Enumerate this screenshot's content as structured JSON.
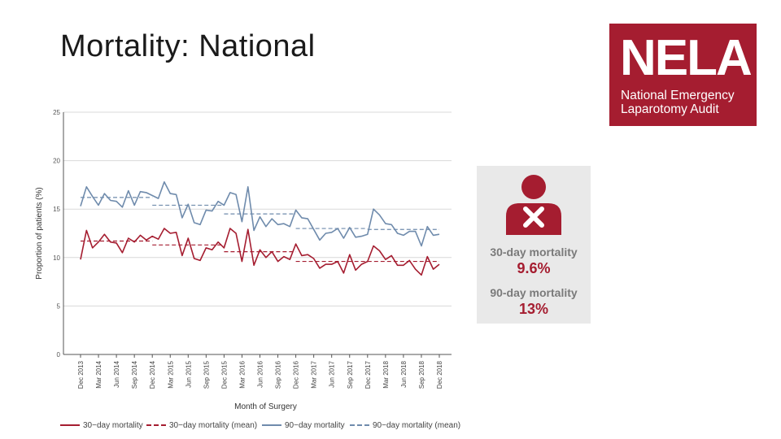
{
  "slide": {
    "title": "Mortality: National"
  },
  "logo": {
    "acronym": "NELA",
    "line1": "National Emergency",
    "line2": "Laparotomy Audit"
  },
  "info": {
    "label30": "30-day mortality",
    "value30": "9.6%",
    "label90": "90-day mortality",
    "value90": "13%",
    "icon": "person-cross-icon"
  },
  "colors": {
    "red": "#a51d30",
    "blue": "#6f8bac",
    "grid": "#d9d9d9",
    "axis": "#555555"
  },
  "chart_data": {
    "type": "line",
    "title": "",
    "xlabel": "Month of Surgery",
    "ylabel": "Proportion of patients (%)",
    "ylim": [
      0,
      25
    ],
    "yticks": [
      0,
      5,
      10,
      15,
      20,
      25
    ],
    "xtick_labels": [
      "Dec 2013",
      "Mar 2014",
      "Jun 2014",
      "Sep 2014",
      "Dec 2014",
      "Mar 2015",
      "Jun 2015",
      "Sep 2015",
      "Dec 2015",
      "Mar 2016",
      "Jun 2016",
      "Sep 2016",
      "Dec 2016",
      "Mar 2017",
      "Jun 2017",
      "Sep 2017",
      "Dec 2017",
      "Mar 2018",
      "Jun 2018",
      "Sep 2018",
      "Dec 2018"
    ],
    "months": 61,
    "series": [
      {
        "name": "30−day mortality",
        "style": "solid",
        "color": "#a51d30",
        "values": [
          9.8,
          12.8,
          11.0,
          11.6,
          12.4,
          11.6,
          11.5,
          10.5,
          12.0,
          11.6,
          12.3,
          11.8,
          12.2,
          11.9,
          13.0,
          12.5,
          12.6,
          10.2,
          12.0,
          9.9,
          9.7,
          11.0,
          10.8,
          11.6,
          11.0,
          13.0,
          12.5,
          9.6,
          12.9,
          9.2,
          10.8,
          10.0,
          10.6,
          9.6,
          10.1,
          9.8,
          11.4,
          10.2,
          10.3,
          9.9,
          8.9,
          9.3,
          9.3,
          9.6,
          8.4,
          10.3,
          8.7,
          9.3,
          9.6,
          11.2,
          10.7,
          9.8,
          10.2,
          9.2,
          9.2,
          9.7,
          8.8,
          8.2,
          10.1,
          8.8,
          9.3
        ]
      },
      {
        "name": "30−day mortality (mean)",
        "style": "dashed",
        "color": "#a51d30",
        "segments": [
          {
            "start": 0,
            "end": 12,
            "value": 11.7
          },
          {
            "start": 12,
            "end": 24,
            "value": 11.3
          },
          {
            "start": 24,
            "end": 36,
            "value": 10.6
          },
          {
            "start": 36,
            "end": 48,
            "value": 9.6
          },
          {
            "start": 48,
            "end": 60,
            "value": 9.6
          }
        ]
      },
      {
        "name": "90−day mortality",
        "style": "solid",
        "color": "#6f8bac",
        "values": [
          15.3,
          17.3,
          16.3,
          15.4,
          16.6,
          15.9,
          15.8,
          15.2,
          16.9,
          15.4,
          16.8,
          16.7,
          16.4,
          16.1,
          17.8,
          16.6,
          16.5,
          14.1,
          15.5,
          13.6,
          13.4,
          14.9,
          14.8,
          15.8,
          15.4,
          16.7,
          16.5,
          13.7,
          17.3,
          12.8,
          14.2,
          13.2,
          14.0,
          13.4,
          13.5,
          13.2,
          14.9,
          14.1,
          14.0,
          12.9,
          11.8,
          12.5,
          12.6,
          13.0,
          12.0,
          13.1,
          12.1,
          12.2,
          12.4,
          15.0,
          14.4,
          13.5,
          13.4,
          12.5,
          12.3,
          12.7,
          12.7,
          11.2,
          13.2,
          12.3,
          12.4
        ]
      },
      {
        "name": "90−day mortality (mean)",
        "style": "dashed",
        "color": "#6f8bac",
        "segments": [
          {
            "start": 0,
            "end": 12,
            "value": 16.2
          },
          {
            "start": 12,
            "end": 24,
            "value": 15.4
          },
          {
            "start": 24,
            "end": 36,
            "value": 14.5
          },
          {
            "start": 36,
            "end": 48,
            "value": 13.0
          },
          {
            "start": 48,
            "end": 60,
            "value": 12.9
          }
        ]
      }
    ]
  }
}
